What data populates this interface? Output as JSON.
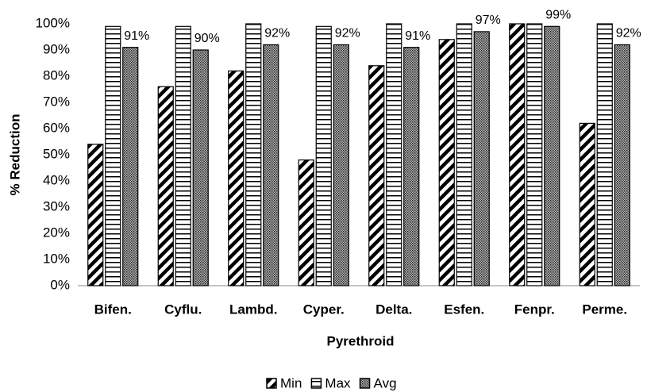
{
  "chart_data": {
    "type": "bar",
    "x_label": "Pyrethroid",
    "y_label": "% Reduction",
    "categories": [
      "Bifen.",
      "Cyflu.",
      "Lambd.",
      "Cyper.",
      "Delta.",
      "Esfen.",
      "Fenpr.",
      "Perme."
    ],
    "series": [
      {
        "name": "Min",
        "color": "#000000",
        "pattern": "diagonal",
        "values": [
          54,
          76,
          82,
          48,
          84,
          94,
          100,
          62
        ]
      },
      {
        "name": "Max",
        "color": "#000000",
        "pattern": "horizontal",
        "values": [
          99,
          99,
          100,
          99,
          100,
          100,
          100,
          100
        ]
      },
      {
        "name": "Avg",
        "color": "#000000",
        "pattern": "dots",
        "values": [
          91,
          90,
          92,
          92,
          91,
          97,
          99,
          92
        ],
        "value_labels": [
          "91%",
          "90%",
          "92%",
          "92%",
          "91%",
          "97%",
          "99%",
          "92%"
        ]
      }
    ],
    "ylim": [
      0,
      100
    ],
    "yticks": [
      {
        "value": 0,
        "label": "0%"
      },
      {
        "value": 10,
        "label": "10%"
      },
      {
        "value": 20,
        "label": "20%"
      },
      {
        "value": 30,
        "label": "30%"
      },
      {
        "value": 40,
        "label": "40%"
      },
      {
        "value": 50,
        "label": "50%"
      },
      {
        "value": 60,
        "label": "60%"
      },
      {
        "value": 70,
        "label": "70%"
      },
      {
        "value": 80,
        "label": "80%"
      },
      {
        "value": 90,
        "label": "90%"
      },
      {
        "value": 100,
        "label": "100%"
      }
    ],
    "grid": false,
    "legend": "bottom"
  }
}
